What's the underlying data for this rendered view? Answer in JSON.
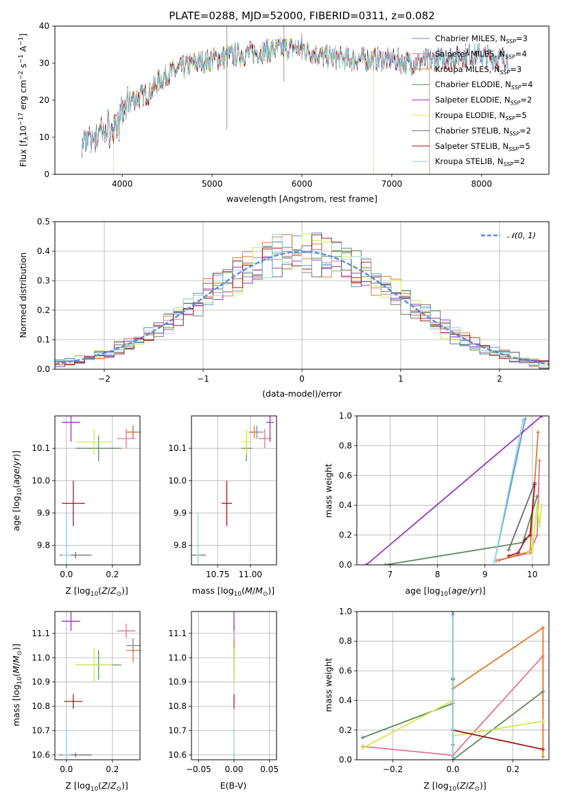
{
  "figure": {
    "title": "PLATE=0288, MJD=52000, FIBERID=0311, z=0.082"
  },
  "colors": {
    "chabrier_miles": "#5b8fd6",
    "salpeter_miles": "#e0748a",
    "kroupa_miles": "#d87c2a",
    "chabrier_elodie": "#5d8a5d",
    "salpeter_elodie": "#9a33b8",
    "kroupa_elodie": "#d4e84a",
    "chabrier_stelib": "#6a6a6a",
    "salpeter_stelib": "#a01818",
    "kroupa_stelib": "#8fd6e0",
    "gaussian": "#5b8fd6"
  },
  "legend": {
    "models": [
      {
        "label": "Chabrier MILES, N",
        "sub": "SSP",
        "tail": "=3",
        "color": "#5b8fd6"
      },
      {
        "label": "Salpeter MILES, N",
        "sub": "SSP",
        "tail": "=4",
        "color": "#e0748a"
      },
      {
        "label": "Kroupa MILES, N",
        "sub": "SSP",
        "tail": "=3",
        "color": "#d87c2a"
      },
      {
        "label": "Chabrier ELODIE, N",
        "sub": "SSP",
        "tail": "=4",
        "color": "#5d8a5d"
      },
      {
        "label": "Salpeter ELODIE, N",
        "sub": "SSP",
        "tail": "=2",
        "color": "#9a33b8"
      },
      {
        "label": "Kroupa ELODIE, N",
        "sub": "SSP",
        "tail": "=5",
        "color": "#d4e84a"
      },
      {
        "label": "Chabrier STELIB, N",
        "sub": "SSP",
        "tail": "=2",
        "color": "#6a6a6a"
      },
      {
        "label": "Salpeter STELIB, N",
        "sub": "SSP",
        "tail": "=5",
        "color": "#a01818"
      },
      {
        "label": "Kroupa STELIB, N",
        "sub": "SSP",
        "tail": "=2",
        "color": "#8fd6e0"
      }
    ],
    "gaussian": "𝒩(0, 1)"
  },
  "chart_data": [
    {
      "type": "line",
      "panel": "spectrum",
      "xlabel": "wavelength [Angstrom, rest frame]",
      "ylabel": "Flux [f_λ 10^-17 erg cm^-2 s^-1 A^-1]",
      "xlim": [
        3250,
        8750
      ],
      "ylim": [
        0,
        40
      ],
      "xticks": [
        4000,
        5000,
        6000,
        7000,
        8000
      ],
      "yticks": [
        0,
        10,
        20,
        30,
        40
      ],
      "continuum": [
        [
          3550,
          8
        ],
        [
          3700,
          10
        ],
        [
          3800,
          12
        ],
        [
          3900,
          12
        ],
        [
          3950,
          14
        ],
        [
          4000,
          16
        ],
        [
          4100,
          20
        ],
        [
          4200,
          21
        ],
        [
          4300,
          22
        ],
        [
          4400,
          25
        ],
        [
          4500,
          27
        ],
        [
          4600,
          28
        ],
        [
          4700,
          29
        ],
        [
          4800,
          30
        ],
        [
          5000,
          31
        ],
        [
          5200,
          32
        ],
        [
          5500,
          33
        ],
        [
          5800,
          34
        ],
        [
          6000,
          34
        ],
        [
          6200,
          32
        ],
        [
          6500,
          31
        ],
        [
          6800,
          31
        ],
        [
          7000,
          31
        ],
        [
          7200,
          30
        ],
        [
          7500,
          31
        ],
        [
          7800,
          32
        ],
        [
          8000,
          32
        ],
        [
          8300,
          31
        ]
      ],
      "model_ranges": [
        [
          3550,
          8300
        ],
        [
          3550,
          8300
        ],
        [
          3550,
          7420
        ],
        [
          3550,
          8300
        ],
        [
          3550,
          8300
        ],
        [
          3900,
          6800
        ],
        [
          3550,
          8300
        ],
        [
          3550,
          8300
        ],
        [
          3550,
          8300
        ]
      ]
    },
    {
      "type": "step",
      "panel": "residual-histogram",
      "xlabel": "(data-model)/error",
      "ylabel": "Normed distribution",
      "xlim": [
        -2.5,
        2.5
      ],
      "ylim": [
        0,
        0.5
      ],
      "xticks": [
        -2,
        -1,
        0,
        1,
        2
      ],
      "yticks": [
        0.0,
        0.1,
        0.2,
        0.3,
        0.4,
        0.5
      ],
      "bin_width": 0.1,
      "gaussian": {
        "mu": 0,
        "sigma": 1
      }
    },
    {
      "type": "scatter",
      "panel": "age-vs-Z",
      "xlabel": "Z [log10(Z/Z⊙)]",
      "ylabel": "age [log10(age/yr)]",
      "xlim": [
        -0.05,
        0.32
      ],
      "ylim": [
        9.74,
        10.2
      ],
      "xticks": [
        0.0,
        0.2
      ],
      "yticks": [
        9.8,
        9.9,
        10.0,
        10.1
      ],
      "points": [
        {
          "model": 0,
          "x": 0.29,
          "y": 10.15,
          "xerr": 0.03,
          "yerr": 0.02
        },
        {
          "model": 1,
          "x": 0.26,
          "y": 10.13,
          "xerr": 0.04,
          "yerr": 0.03
        },
        {
          "model": 2,
          "x": 0.29,
          "y": 10.15,
          "xerr": 0.03,
          "yerr": 0.02
        },
        {
          "model": 3,
          "x": 0.14,
          "y": 10.1,
          "xerr": 0.1,
          "yerr": 0.04
        },
        {
          "model": 4,
          "x": 0.02,
          "y": 10.18,
          "xerr": 0.04,
          "yerr": 0.06
        },
        {
          "model": 5,
          "x": 0.12,
          "y": 10.12,
          "xerr": 0.08,
          "yerr": 0.04
        },
        {
          "model": 6,
          "x": 0.04,
          "y": 9.77,
          "xerr": 0.07,
          "yerr": 0.01
        },
        {
          "model": 7,
          "x": 0.03,
          "y": 9.93,
          "xerr": 0.05,
          "yerr": 0.07
        },
        {
          "model": 8,
          "x": 0.0,
          "y": 9.77,
          "xerr": 0.02,
          "yerr": 0.13
        }
      ]
    },
    {
      "type": "scatter",
      "panel": "age-vs-mass",
      "xlabel": "mass [log10(M/M⊙)]",
      "ylabel": "",
      "xlim": [
        10.55,
        11.2
      ],
      "ylim": [
        9.74,
        10.2
      ],
      "xticks": [
        10.75,
        11.0
      ],
      "yticks": [
        9.8,
        9.9,
        10.0,
        10.1
      ],
      "points": [
        {
          "model": 0,
          "x": 11.05,
          "y": 10.15,
          "xerr": 0.05,
          "yerr": 0.02
        },
        {
          "model": 1,
          "x": 11.11,
          "y": 10.13,
          "xerr": 0.05,
          "yerr": 0.03
        },
        {
          "model": 2,
          "x": 11.03,
          "y": 10.15,
          "xerr": 0.04,
          "yerr": 0.02
        },
        {
          "model": 3,
          "x": 10.97,
          "y": 10.1,
          "xerr": 0.04,
          "yerr": 0.04
        },
        {
          "model": 4,
          "x": 11.15,
          "y": 10.18,
          "xerr": 0.03,
          "yerr": 0.06
        },
        {
          "model": 5,
          "x": 10.97,
          "y": 10.12,
          "xerr": 0.04,
          "yerr": 0.04
        },
        {
          "model": 6,
          "x": 10.6,
          "y": 9.77,
          "xerr": 0.06,
          "yerr": 0.01
        },
        {
          "model": 7,
          "x": 10.82,
          "y": 9.93,
          "xerr": 0.04,
          "yerr": 0.07
        },
        {
          "model": 8,
          "x": 10.6,
          "y": 9.77,
          "xerr": 0.01,
          "yerr": 0.13
        }
      ]
    },
    {
      "type": "line",
      "panel": "massweight-vs-age",
      "xlabel": "age [log10(age/yr)]",
      "ylabel": "mass weight",
      "xlim": [
        6.3,
        10.35
      ],
      "ylim": [
        0,
        1.0
      ],
      "xticks": [
        7,
        8,
        9,
        10
      ],
      "yticks": [
        0.0,
        0.2,
        0.4,
        0.6,
        0.8,
        1.0
      ],
      "series": [
        {
          "model": 0,
          "x": [
            9.2,
            9.85
          ],
          "y": [
            0.02,
            0.98
          ]
        },
        {
          "model": 1,
          "x": [
            9.25,
            9.95,
            10.1,
            10.15
          ],
          "y": [
            0.03,
            0.08,
            0.2,
            0.7
          ]
        },
        {
          "model": 2,
          "x": [
            9.3,
            9.95,
            10.12
          ],
          "y": [
            0.03,
            0.09,
            0.89
          ]
        },
        {
          "model": 3,
          "x": [
            6.9,
            9.8,
            10.1
          ],
          "y": [
            0.0,
            0.15,
            0.46
          ]
        },
        {
          "model": 4,
          "x": [
            6.5,
            10.2
          ],
          "y": [
            0.0,
            1.0
          ]
        },
        {
          "model": 5,
          "x": [
            9.9,
            10.0,
            10.1,
            10.15,
            10.2
          ],
          "y": [
            0.08,
            0.1,
            0.4,
            0.26,
            0.4
          ]
        },
        {
          "model": 6,
          "x": [
            9.5,
            10.05
          ],
          "y": [
            0.1,
            0.55
          ]
        },
        {
          "model": 7,
          "x": [
            9.5,
            9.7,
            9.85,
            9.95,
            10.05
          ],
          "y": [
            0.06,
            0.08,
            0.17,
            0.2,
            0.54
          ]
        },
        {
          "model": 8,
          "x": [
            9.2,
            9.8
          ],
          "y": [
            0.02,
            0.97
          ]
        }
      ]
    },
    {
      "type": "scatter",
      "panel": "mass-vs-Z",
      "xlabel": "Z [log10(Z/Z⊙)]",
      "ylabel": "mass [log10(M/M⊙)]",
      "xlim": [
        -0.05,
        0.32
      ],
      "ylim": [
        10.58,
        11.19
      ],
      "xticks": [
        0.0,
        0.2
      ],
      "yticks": [
        10.6,
        10.7,
        10.8,
        10.9,
        11.0,
        11.1
      ],
      "points": [
        {
          "model": 0,
          "x": 0.29,
          "y": 11.05,
          "xerr": 0.03,
          "yerr": 0.03
        },
        {
          "model": 1,
          "x": 0.26,
          "y": 11.11,
          "xerr": 0.04,
          "yerr": 0.03
        },
        {
          "model": 2,
          "x": 0.29,
          "y": 11.03,
          "xerr": 0.03,
          "yerr": 0.05
        },
        {
          "model": 3,
          "x": 0.14,
          "y": 10.97,
          "xerr": 0.1,
          "yerr": 0.06
        },
        {
          "model": 4,
          "x": 0.02,
          "y": 11.15,
          "xerr": 0.04,
          "yerr": 0.04
        },
        {
          "model": 5,
          "x": 0.12,
          "y": 10.97,
          "xerr": 0.08,
          "yerr": 0.07
        },
        {
          "model": 6,
          "x": 0.04,
          "y": 10.6,
          "xerr": 0.07,
          "yerr": 0.01
        },
        {
          "model": 7,
          "x": 0.03,
          "y": 10.82,
          "xerr": 0.04,
          "yerr": 0.03
        },
        {
          "model": 8,
          "x": 0.0,
          "y": 10.6,
          "xerr": 0.02,
          "yerr": 0.11
        }
      ]
    },
    {
      "type": "scatter",
      "panel": "mass-vs-EBV",
      "xlabel": "E(B-V)",
      "ylabel": "",
      "xlim": [
        -0.06,
        0.06
      ],
      "ylim": [
        10.58,
        11.19
      ],
      "xticks": [
        -0.05,
        0.0,
        0.05
      ],
      "yticks": [
        10.6,
        10.7,
        10.8,
        10.9,
        11.0,
        11.1
      ],
      "points": [
        {
          "model": 0,
          "x": 0.0,
          "y": 11.05,
          "xerr": 0.0,
          "yerr": 0.03
        },
        {
          "model": 1,
          "x": 0.0,
          "y": 11.11,
          "xerr": 0.0,
          "yerr": 0.03
        },
        {
          "model": 2,
          "x": 0.0,
          "y": 11.03,
          "xerr": 0.0,
          "yerr": 0.05
        },
        {
          "model": 3,
          "x": 0.0,
          "y": 10.97,
          "xerr": 0.0,
          "yerr": 0.06
        },
        {
          "model": 4,
          "x": 0.0,
          "y": 11.15,
          "xerr": 0.0,
          "yerr": 0.04
        },
        {
          "model": 5,
          "x": 0.0,
          "y": 10.97,
          "xerr": 0.0,
          "yerr": 0.07
        },
        {
          "model": 6,
          "x": 0.0,
          "y": 10.6,
          "xerr": 0.0,
          "yerr": 0.01
        },
        {
          "model": 7,
          "x": 0.0,
          "y": 10.82,
          "xerr": 0.0,
          "yerr": 0.03
        },
        {
          "model": 8,
          "x": 0.0,
          "y": 10.6,
          "xerr": 0.0,
          "yerr": 0.11
        }
      ]
    },
    {
      "type": "line",
      "panel": "massweight-vs-Z",
      "xlabel": "Z [log10(Z/Z⊙)]",
      "ylabel": "mass weight",
      "xlim": [
        -0.32,
        0.32
      ],
      "ylim": [
        0,
        1.0
      ],
      "xticks": [
        -0.2,
        0.0,
        0.2
      ],
      "yticks": [
        0.0,
        0.2,
        0.4,
        0.6,
        0.8,
        1.0
      ],
      "series": [
        {
          "model": 0,
          "x": [
            0.0,
            0.0
          ],
          "y": [
            0.02,
            0.98
          ]
        },
        {
          "model": 1,
          "x": [
            -0.3,
            0.0,
            0.3,
            0.3
          ],
          "y": [
            0.09,
            0.03,
            0.7,
            0.2
          ]
        },
        {
          "model": 2,
          "x": [
            0.0,
            0.3,
            0.3
          ],
          "y": [
            0.48,
            0.89,
            0.02
          ]
        },
        {
          "model": 3,
          "x": [
            -0.3,
            0.0,
            0.0,
            0.3
          ],
          "y": [
            0.15,
            0.38,
            0.0,
            0.46
          ]
        },
        {
          "model": 4,
          "x": [
            0.0,
            0.0
          ],
          "y": [
            0.0,
            1.0
          ]
        },
        {
          "model": 5,
          "x": [
            -0.3,
            0.0,
            0.0,
            0.3
          ],
          "y": [
            0.08,
            0.4,
            0.16,
            0.26
          ]
        },
        {
          "model": 6,
          "x": [
            0.0,
            0.0
          ],
          "y": [
            0.1,
            0.55
          ]
        },
        {
          "model": 7,
          "x": [
            0.0,
            0.0,
            0.3
          ],
          "y": [
            0.54,
            0.2,
            0.07
          ]
        },
        {
          "model": 8,
          "x": [
            0.0,
            0.0
          ],
          "y": [
            0.02,
            0.97
          ]
        }
      ]
    }
  ]
}
